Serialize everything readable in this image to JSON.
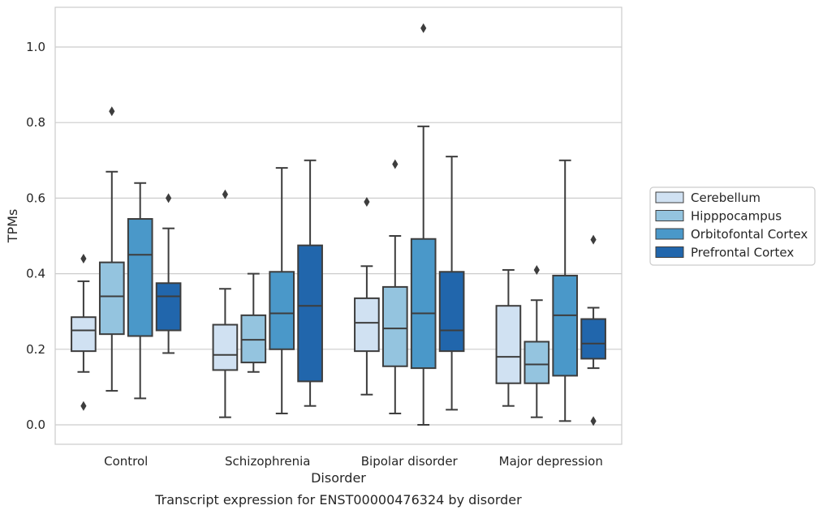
{
  "chart_data": {
    "type": "box",
    "title": "",
    "caption": "Transcript expression for ENST00000476324 by disorder",
    "xlabel": "Disorder",
    "ylabel": "TPMs",
    "ylim": [
      -0.05,
      1.1
    ],
    "yticks": [
      "0.0",
      "0.2",
      "0.4",
      "0.6",
      "0.8",
      "1.0"
    ],
    "grid": "horizontal",
    "legend_position": "right",
    "categories": [
      "Control",
      "Schizophrenia",
      "Bipolar disorder",
      "Major depression"
    ],
    "series": [
      {
        "name": "Cerebellum",
        "color": "#d0e1f2",
        "boxes": [
          {
            "whislo": 0.14,
            "q1": 0.195,
            "med": 0.25,
            "q3": 0.285,
            "whishi": 0.38,
            "fliers": [
              0.44,
              0.05
            ]
          },
          {
            "whislo": 0.02,
            "q1": 0.145,
            "med": 0.185,
            "q3": 0.265,
            "whishi": 0.36,
            "fliers": [
              0.61
            ]
          },
          {
            "whislo": 0.08,
            "q1": 0.195,
            "med": 0.27,
            "q3": 0.335,
            "whishi": 0.42,
            "fliers": [
              0.59
            ]
          },
          {
            "whislo": 0.05,
            "q1": 0.11,
            "med": 0.18,
            "q3": 0.315,
            "whishi": 0.41,
            "fliers": []
          }
        ]
      },
      {
        "name": "Hipppocampus",
        "color": "#94c4df",
        "boxes": [
          {
            "whislo": 0.09,
            "q1": 0.24,
            "med": 0.34,
            "q3": 0.43,
            "whishi": 0.67,
            "fliers": [
              0.83
            ]
          },
          {
            "whislo": 0.14,
            "q1": 0.165,
            "med": 0.225,
            "q3": 0.29,
            "whishi": 0.4,
            "fliers": []
          },
          {
            "whislo": 0.03,
            "q1": 0.155,
            "med": 0.255,
            "q3": 0.365,
            "whishi": 0.5,
            "fliers": [
              0.69
            ]
          },
          {
            "whislo": 0.02,
            "q1": 0.11,
            "med": 0.16,
            "q3": 0.22,
            "whishi": 0.33,
            "fliers": [
              0.41
            ]
          }
        ]
      },
      {
        "name": "Orbitofontal Cortex",
        "color": "#4a98c9",
        "boxes": [
          {
            "whislo": 0.07,
            "q1": 0.235,
            "med": 0.45,
            "q3": 0.545,
            "whishi": 0.64,
            "fliers": []
          },
          {
            "whislo": 0.03,
            "q1": 0.2,
            "med": 0.295,
            "q3": 0.405,
            "whishi": 0.68,
            "fliers": []
          },
          {
            "whislo": 0.0,
            "q1": 0.15,
            "med": 0.295,
            "q3": 0.492,
            "whishi": 0.79,
            "fliers": [
              1.05
            ]
          },
          {
            "whislo": 0.01,
            "q1": 0.13,
            "med": 0.29,
            "q3": 0.395,
            "whishi": 0.7,
            "fliers": []
          }
        ]
      },
      {
        "name": "Prefrontal Cortex",
        "color": "#2166ac",
        "boxes": [
          {
            "whislo": 0.19,
            "q1": 0.25,
            "med": 0.34,
            "q3": 0.375,
            "whishi": 0.52,
            "fliers": [
              0.6
            ]
          },
          {
            "whislo": 0.05,
            "q1": 0.115,
            "med": 0.315,
            "q3": 0.475,
            "whishi": 0.7,
            "fliers": []
          },
          {
            "whislo": 0.04,
            "q1": 0.195,
            "med": 0.25,
            "q3": 0.405,
            "whishi": 0.71,
            "fliers": []
          },
          {
            "whislo": 0.15,
            "q1": 0.175,
            "med": 0.215,
            "q3": 0.28,
            "whishi": 0.31,
            "fliers": [
              0.49,
              0.01
            ]
          }
        ]
      }
    ]
  }
}
